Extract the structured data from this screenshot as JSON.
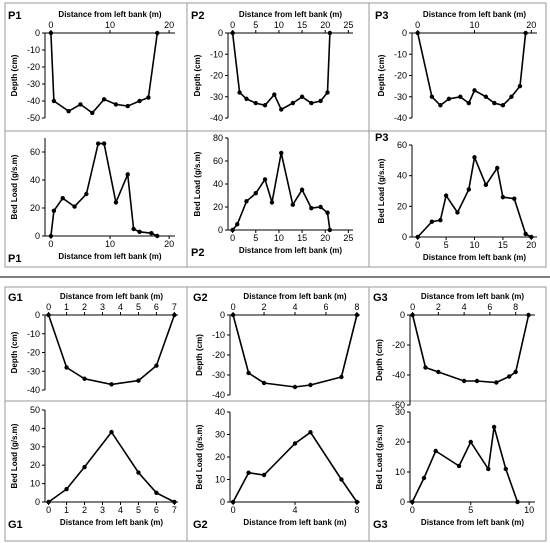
{
  "chart_data": [
    {
      "id": "p1-depth",
      "label": "P1",
      "type": "line",
      "xlabel": "Distance from left bank (m)",
      "ylabel": "Depth (cm)",
      "xticks": [
        0,
        10,
        20
      ],
      "yticks": [
        0,
        -10,
        -20,
        -30,
        -40,
        -50
      ],
      "xlim": [
        -1,
        21
      ],
      "ylim": [
        -50,
        0
      ],
      "x": [
        0,
        0.5,
        3,
        5,
        7,
        9,
        11,
        13,
        15,
        16.5,
        18
      ],
      "y": [
        0,
        -40,
        -46,
        -42,
        -47,
        -39,
        -42,
        -43,
        -40,
        -38,
        0
      ]
    },
    {
      "id": "p2-depth",
      "label": "P2",
      "type": "line",
      "xlabel": "Distance from left bank (m)",
      "ylabel": "Depth (cm)",
      "xticks": [
        0,
        5,
        10,
        15,
        20,
        25
      ],
      "yticks": [
        0,
        -10,
        -20,
        -30,
        -40
      ],
      "xlim": [
        -1,
        26
      ],
      "ylim": [
        -40,
        0
      ],
      "x": [
        0,
        1.5,
        3,
        5,
        7,
        9,
        10.5,
        13,
        15,
        17,
        19,
        20.5,
        21
      ],
      "y": [
        0,
        -28,
        -31,
        -33,
        -34,
        -29,
        -36,
        -33,
        -30,
        -33,
        -32,
        -28,
        0
      ]
    },
    {
      "id": "p3-depth",
      "label": "P3",
      "type": "line",
      "xlabel": "Distance from left bank (m)",
      "ylabel": "Depth (cm)",
      "xticks": [
        0,
        10,
        20
      ],
      "yticks": [
        0,
        -10,
        -20,
        -30,
        -40
      ],
      "xlim": [
        -1,
        21
      ],
      "ylim": [
        -40,
        0
      ],
      "x": [
        0,
        2.5,
        4,
        5.5,
        7.5,
        9,
        10,
        12,
        13.5,
        15,
        16.5,
        18,
        19
      ],
      "y": [
        0,
        -30,
        -34,
        -31,
        -30,
        -33,
        -27,
        -30,
        -33,
        -34,
        -30,
        -25,
        0
      ]
    },
    {
      "id": "p1-load",
      "label": "P1",
      "type": "line",
      "xlabel": "Distance from left bank (m)",
      "ylabel": "Bed Load (g/s.m)",
      "xticks": [
        0,
        10,
        20
      ],
      "yticks": [
        0,
        20,
        40,
        60
      ],
      "xlim": [
        -1,
        21
      ],
      "ylim": [
        0,
        70
      ],
      "x": [
        0,
        0.5,
        2,
        4,
        6,
        8,
        9,
        11,
        13,
        14,
        15,
        17,
        18
      ],
      "y": [
        0,
        18,
        27,
        21,
        30,
        66,
        66,
        24,
        44,
        5,
        3,
        2,
        0
      ]
    },
    {
      "id": "p2-load",
      "label": "P2",
      "type": "line",
      "xlabel": "Distance from left bank (m)",
      "ylabel": "Bed Load (g/s.m)",
      "xticks": [
        0,
        5,
        10,
        15,
        20,
        25
      ],
      "yticks": [
        0,
        20,
        40,
        60,
        80
      ],
      "xlim": [
        -1,
        26
      ],
      "ylim": [
        0,
        80
      ],
      "x": [
        0,
        1,
        3,
        5,
        7,
        8.5,
        10.5,
        13,
        15,
        17,
        19,
        20.5,
        21
      ],
      "y": [
        0,
        5,
        25,
        32,
        44,
        24,
        67,
        22,
        35,
        19,
        20,
        15,
        0
      ]
    },
    {
      "id": "p3-load",
      "label": "P3",
      "type": "line",
      "xlabel": "Distance from left bank (m)",
      "ylabel": "Bed Load (g/s.m)",
      "xticks": [
        0,
        5,
        10,
        15,
        20
      ],
      "yticks": [
        0,
        20,
        40,
        60
      ],
      "xlim": [
        -1,
        21
      ],
      "ylim": [
        0,
        60
      ],
      "x": [
        0,
        2.5,
        4,
        5,
        7,
        9,
        10,
        12,
        14,
        15,
        17,
        19,
        20
      ],
      "y": [
        0,
        10,
        11,
        27,
        16,
        31,
        52,
        34,
        45,
        26,
        25,
        2,
        0
      ]
    },
    {
      "id": "g1-depth",
      "label": "G1",
      "type": "line",
      "xlabel": "Distance from left bank (m)",
      "ylabel": "Depth (cm)",
      "xticks": [
        0,
        1,
        2,
        3,
        4,
        5,
        6,
        7
      ],
      "yticks": [
        0,
        -10,
        -20,
        -30,
        -40
      ],
      "xlim": [
        -0.2,
        7.2
      ],
      "ylim": [
        -40,
        0
      ],
      "x": [
        0,
        1,
        2,
        3.5,
        5,
        6,
        7
      ],
      "y": [
        0,
        -28,
        -34,
        -37,
        -35,
        -27,
        0
      ]
    },
    {
      "id": "g2-depth",
      "label": "G2",
      "type": "line",
      "xlabel": "Distance from left bank (m)",
      "ylabel": "Depth (cm)",
      "xticks": [
        0,
        2,
        4,
        6,
        8
      ],
      "yticks": [
        0,
        -10,
        -20,
        -30,
        -40
      ],
      "xlim": [
        -0.2,
        8.2
      ],
      "ylim": [
        -40,
        0
      ],
      "x": [
        0,
        1,
        2,
        4,
        5,
        7,
        8
      ],
      "y": [
        0,
        -29,
        -34,
        -36,
        -35,
        -31,
        0
      ]
    },
    {
      "id": "g3-depth",
      "label": "G3",
      "type": "line",
      "xlabel": "Distance from left bank (m)",
      "ylabel": "Depth (cm)",
      "xticks": [
        0,
        2,
        4,
        6,
        8
      ],
      "yticks": [
        0,
        -20,
        -40,
        -60
      ],
      "xlim": [
        -0.2,
        9.5
      ],
      "ylim": [
        -60,
        0
      ],
      "x": [
        0,
        1,
        2,
        4,
        5,
        6.5,
        7.5,
        8,
        9
      ],
      "y": [
        0,
        -35,
        -38,
        -44,
        -44,
        -45,
        -41,
        -38,
        0
      ]
    },
    {
      "id": "g1-load",
      "label": "G1",
      "type": "line",
      "xlabel": "Distance from left bank (m)",
      "ylabel": "Bed Load (g/s.m)",
      "xticks": [
        0,
        1,
        2,
        3,
        4,
        5,
        6,
        7
      ],
      "yticks": [
        0,
        10,
        20,
        30,
        40,
        50
      ],
      "xlim": [
        -0.2,
        7.2
      ],
      "ylim": [
        0,
        50
      ],
      "x": [
        0,
        1,
        2,
        3.5,
        5,
        6,
        7
      ],
      "y": [
        0,
        7,
        19,
        38,
        16,
        5,
        0
      ]
    },
    {
      "id": "g2-load",
      "label": "G2",
      "type": "line",
      "xlabel": "Distance from left bank (m)",
      "ylabel": "Bed Load (g/s.m)",
      "xticks": [
        0,
        4,
        8
      ],
      "yticks": [
        0,
        10,
        20,
        30,
        40
      ],
      "xlim": [
        -0.2,
        8.2
      ],
      "ylim": [
        0,
        40
      ],
      "x": [
        0,
        1,
        2,
        4,
        5,
        7,
        8
      ],
      "y": [
        0,
        13,
        12,
        26,
        31,
        10,
        0
      ]
    },
    {
      "id": "g3-load",
      "label": "G3",
      "type": "line",
      "xlabel": "Distance from left bank (m)",
      "ylabel": "Bed Load (g/s.m)",
      "xticks": [
        0,
        5,
        10
      ],
      "yticks": [
        0,
        10,
        20,
        30
      ],
      "xlim": [
        -0.2,
        10.5
      ],
      "ylim": [
        0,
        30
      ],
      "x": [
        0,
        1,
        2,
        4,
        5,
        6.5,
        7,
        8,
        9
      ],
      "y": [
        0,
        8,
        17,
        12,
        20,
        11,
        25,
        11,
        0
      ]
    }
  ]
}
